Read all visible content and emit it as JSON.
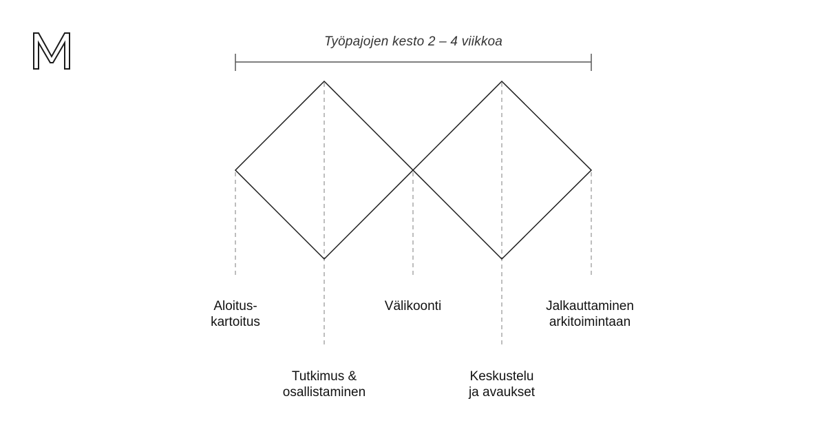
{
  "logo": {
    "letter": "M",
    "name": "m-logo"
  },
  "duration": {
    "label": "Työpajojen kesto 2 – 4 viikkoa"
  },
  "phases": [
    {
      "id": "aloitus",
      "lines": [
        "Aloitus-",
        "kartoitus"
      ]
    },
    {
      "id": "tutkimus",
      "lines": [
        "Tutkimus &",
        "osallistaminen"
      ]
    },
    {
      "id": "valikoonti",
      "lines": [
        "Välikoonti"
      ]
    },
    {
      "id": "keskustelu",
      "lines": [
        "Keskustelu",
        "ja avaukset"
      ]
    },
    {
      "id": "jalkauttaminen",
      "lines": [
        "Jalkauttaminen",
        "arkitoimintaan"
      ]
    }
  ],
  "colors": {
    "line": "#1a1a1a",
    "dashed": "#9a9a9a",
    "text": "#111111"
  }
}
